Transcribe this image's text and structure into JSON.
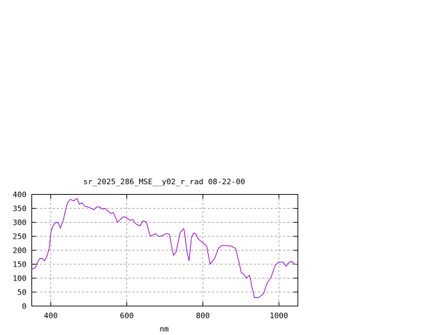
{
  "chart_data": {
    "type": "line",
    "title": "sr_2025_286_MSE__y02_r_rad 08-22-00",
    "xlabel": "nm",
    "ylabel": "",
    "xlim": [
      350,
      1050
    ],
    "ylim": [
      0,
      400
    ],
    "xticks": [
      400,
      600,
      800,
      1000
    ],
    "yticks": [
      0,
      50,
      100,
      150,
      200,
      250,
      300,
      350,
      400
    ],
    "grid": true,
    "line_color": "#9400d3",
    "series": [
      {
        "x": [
          350,
          359,
          365,
          371,
          378,
          383,
          389,
          396,
          401,
          407,
          414,
          420,
          425,
          433,
          438,
          444,
          451,
          460,
          469,
          475,
          482,
          490,
          497,
          506,
          513,
          521,
          528,
          536,
          543,
          550,
          558,
          565,
          569,
          576,
          583,
          591,
          598,
          609,
          616,
          623,
          635,
          642,
          650,
          653,
          657,
          662,
          670,
          675,
          683,
          690,
          705,
          712,
          718,
          723,
          730,
          740,
          749,
          751,
          758,
          764,
          770,
          776,
          782,
          788,
          800,
          810,
          819,
          831,
          841,
          850,
          859,
          874,
          886,
          896,
          901,
          907,
          914,
          923,
          929,
          936,
          947,
          960,
          969,
          979,
          990,
          999,
          1012,
          1019,
          1025,
          1034,
          1041,
          1048
        ],
        "y": [
          132,
          137,
          157,
          170,
          170,
          162,
          175,
          207,
          270,
          290,
          300,
          297,
          280,
          307,
          340,
          370,
          382,
          377,
          385,
          365,
          370,
          357,
          355,
          350,
          345,
          355,
          355,
          347,
          350,
          340,
          332,
          335,
          320,
          300,
          310,
          320,
          317,
          307,
          310,
          295,
          287,
          305,
          302,
          295,
          270,
          250,
          255,
          260,
          250,
          250,
          260,
          257,
          212,
          182,
          195,
          262,
          277,
          272,
          195,
          162,
          245,
          262,
          257,
          240,
          227,
          215,
          150,
          170,
          207,
          217,
          217,
          215,
          207,
          152,
          120,
          115,
          100,
          110,
          70,
          30,
          30,
          45,
          82,
          102,
          145,
          157,
          157,
          142,
          155,
          160,
          150,
          150
        ]
      }
    ]
  }
}
